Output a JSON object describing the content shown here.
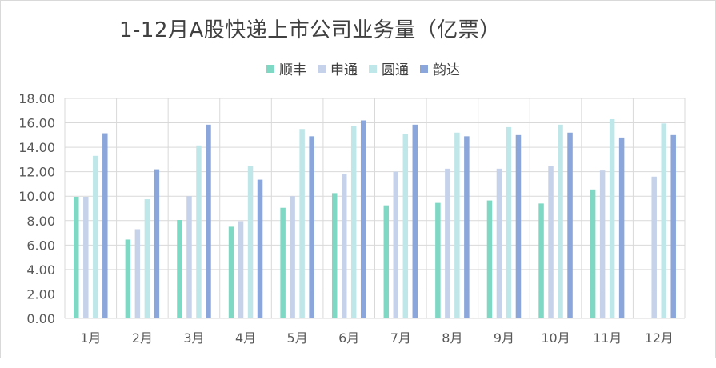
{
  "chart_data": {
    "type": "bar",
    "title": "1-12月A股快递上市公司业务量（亿票）",
    "categories": [
      "1月",
      "2月",
      "3月",
      "4月",
      "5月",
      "6月",
      "7月",
      "8月",
      "9月",
      "10月",
      "11月",
      "12月"
    ],
    "series": [
      {
        "name": "顺丰",
        "color": "#7fd8c4",
        "values": [
          9.95,
          6.45,
          8.05,
          7.5,
          9.05,
          10.25,
          9.25,
          9.45,
          9.65,
          9.4,
          10.55,
          null
        ]
      },
      {
        "name": "申通",
        "color": "#c6d2ea",
        "values": [
          9.95,
          7.3,
          10.0,
          7.95,
          10.0,
          11.85,
          12.0,
          12.25,
          12.25,
          12.5,
          12.1,
          11.6
        ]
      },
      {
        "name": "圆通",
        "color": "#bfe7ea",
        "values": [
          13.3,
          9.75,
          14.15,
          12.45,
          15.5,
          15.75,
          15.1,
          15.2,
          15.65,
          15.85,
          16.3,
          15.95
        ]
      },
      {
        "name": "韵达",
        "color": "#8aa6da",
        "values": [
          15.15,
          12.2,
          15.85,
          11.35,
          14.9,
          16.2,
          15.85,
          14.9,
          15.0,
          15.2,
          14.8,
          15.0
        ]
      }
    ],
    "yticks": [
      "0.00",
      "2.00",
      "4.00",
      "6.00",
      "8.00",
      "10.00",
      "12.00",
      "14.00",
      "16.00",
      "18.00"
    ],
    "ylim": [
      0,
      18
    ],
    "grid": true,
    "legend_position": "top"
  }
}
